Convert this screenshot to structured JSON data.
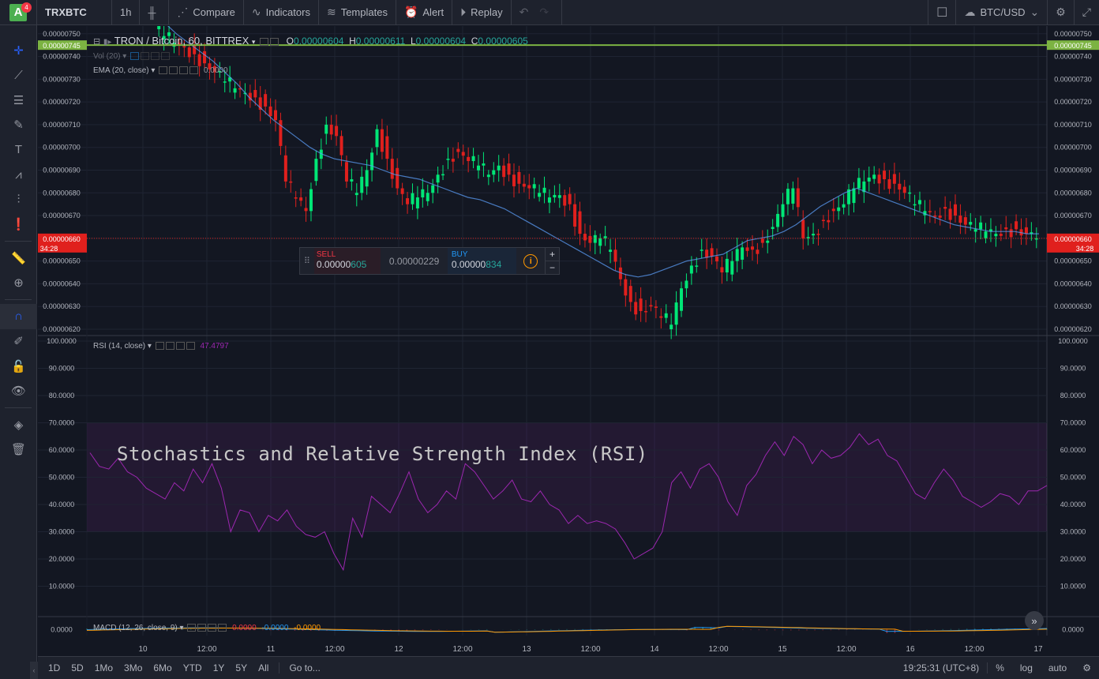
{
  "topbar": {
    "badge": "4",
    "logo": "A",
    "symbol": "TRXBTC",
    "interval": "1h",
    "compare": "Compare",
    "indicators": "Indicators",
    "templates": "Templates",
    "alert": "Alert",
    "replay": "Replay",
    "currency": "BTC/USD"
  },
  "legend": {
    "main_title": "TRON / Bitcoin, 60, BITTREX",
    "o_label": "O",
    "o_value": "0.00000604",
    "h_label": "H",
    "h_value": "0.00000611",
    "l_label": "L",
    "l_value": "0.00000604",
    "c_label": "C",
    "c_value": "0.00000605",
    "vol": "Vol (20)",
    "ema": "EMA (20, close)",
    "ema_value": "0.0000",
    "rsi": "RSI (14, close)",
    "rsi_value": "47.4797",
    "macd": "MACD (12, 26, close, 9)",
    "macd_v1": "0.0000",
    "macd_v2": "-0.0000",
    "macd_v3": "-0.0000"
  },
  "trade": {
    "sell_label": "SELL",
    "sell_price_head": "0.00000",
    "sell_price_tail": "605",
    "spread": "0.00000229",
    "buy_label": "BUY",
    "buy_price_head": "0.00000",
    "buy_price_tail": "834",
    "info": "i",
    "plus": "+",
    "minus": "−"
  },
  "price_labels": {
    "current": "0.00000660",
    "countdown": "34:28",
    "highlight": "0.00000745"
  },
  "rsi_title": "Stochastics and Relative Strength Index (RSI)",
  "bottombar": {
    "ranges": [
      "1D",
      "5D",
      "1Mo",
      "3Mo",
      "6Mo",
      "YTD",
      "1Y",
      "5Y",
      "All"
    ],
    "goto": "Go to...",
    "clock": "19:25:31 (UTC+8)",
    "percent": "%",
    "log": "log",
    "auto": "auto"
  },
  "chart_data": [
    {
      "type": "candlestick",
      "title": "TRON / Bitcoin, 60, BITTREX",
      "ylim": [
        6.2e-06,
        7.52e-06
      ],
      "price_axis_ticks": [
        "0.00000750",
        "0.00000740",
        "0.00000730",
        "0.00000720",
        "0.00000710",
        "0.00000700",
        "0.00000690",
        "0.00000680",
        "0.00000670",
        "0.00000660",
        "0.00000650",
        "0.00000640",
        "0.00000630",
        "0.00000620"
      ],
      "x_ticks": [
        "10",
        "12:00",
        "11",
        "12:00",
        "12",
        "12:00",
        "13",
        "12:00",
        "14",
        "12:00",
        "15",
        "12:00",
        "16",
        "12:00",
        "17"
      ],
      "close_path": [
        7.52,
        7.49,
        7.46,
        7.44,
        7.41,
        7.37,
        7.33,
        7.29,
        7.26,
        7.24,
        7.22,
        7.18,
        7.12,
        6.85,
        6.78,
        6.72,
        6.95,
        7.1,
        7.05,
        6.85,
        6.8,
        6.9,
        7.08,
        6.95,
        6.82,
        6.75,
        6.78,
        6.8,
        6.88,
        6.95,
        6.98,
        6.94,
        6.92,
        6.88,
        6.92,
        6.88,
        6.84,
        6.82,
        6.8,
        6.78,
        6.79,
        6.75,
        6.62,
        6.58,
        6.6,
        6.55,
        6.42,
        6.32,
        6.28,
        6.3,
        6.25,
        6.22,
        6.38,
        6.48,
        6.55,
        6.52,
        6.45,
        6.5,
        6.56,
        6.55,
        6.58,
        6.65,
        6.75,
        6.82,
        6.6,
        6.62,
        6.68,
        6.72,
        6.75,
        6.82,
        6.85,
        6.88,
        6.86,
        6.84,
        6.8,
        6.75,
        6.72,
        6.7,
        6.73,
        6.7,
        6.66,
        6.64,
        6.63,
        6.62,
        6.64,
        6.64,
        6.62,
        6.6
      ],
      "ema_path": [
        7.55,
        7.5,
        7.46,
        7.42,
        7.38,
        7.33,
        7.28,
        7.22,
        7.17,
        7.12,
        7.08,
        7.04,
        7.0,
        6.97,
        6.95,
        6.94,
        6.93,
        6.92,
        6.9,
        6.88,
        6.87,
        6.86,
        6.84,
        6.82,
        6.8,
        6.78,
        6.77,
        6.75,
        6.73,
        6.7,
        6.67,
        6.64,
        6.61,
        6.58,
        6.55,
        6.52,
        6.49,
        6.46,
        6.44,
        6.43,
        6.44,
        6.46,
        6.48,
        6.5,
        6.51,
        6.52,
        6.53,
        6.56,
        6.59,
        6.6,
        6.61,
        6.63,
        6.66,
        6.7,
        6.74,
        6.77,
        6.8,
        6.82,
        6.8,
        6.78,
        6.76,
        6.74,
        6.72,
        6.7,
        6.68,
        6.66,
        6.65,
        6.64,
        6.63,
        6.63,
        6.63,
        6.62,
        6.62
      ],
      "current_price": "0.00000660",
      "highlight_price": "0.00000745"
    },
    {
      "type": "line",
      "title": "RSI (14, close)",
      "ylim": [
        0,
        100
      ],
      "y_ticks": [
        "100.0000",
        "90.0000",
        "80.0000",
        "70.0000",
        "60.0000",
        "50.0000",
        "40.0000",
        "30.0000",
        "20.0000",
        "10.0000"
      ],
      "band": [
        30,
        70
      ],
      "values": [
        59,
        54,
        53,
        57,
        52,
        50,
        46,
        44,
        42,
        48,
        45,
        53,
        48,
        55,
        46,
        30,
        38,
        37,
        30,
        36,
        34,
        38,
        32,
        29,
        28,
        30,
        22,
        16,
        35,
        28,
        43,
        40,
        37,
        44,
        52,
        42,
        37,
        40,
        45,
        42,
        55,
        52,
        47,
        42,
        45,
        49,
        42,
        41,
        45,
        40,
        38,
        33,
        36,
        33,
        34,
        33,
        31,
        26,
        20,
        22,
        24,
        30,
        48,
        52,
        46,
        53,
        55,
        50,
        41,
        36,
        47,
        51,
        58,
        63,
        58,
        65,
        62,
        55,
        60,
        57,
        58,
        61,
        66,
        62,
        64,
        58,
        56,
        50,
        44,
        42,
        48,
        53,
        49,
        43,
        41,
        39,
        41,
        44,
        43,
        40,
        45,
        45,
        47
      ]
    },
    {
      "type": "line",
      "title": "MACD (12, 26, close, 9)",
      "y_ticks": [
        "0.0000"
      ]
    }
  ]
}
